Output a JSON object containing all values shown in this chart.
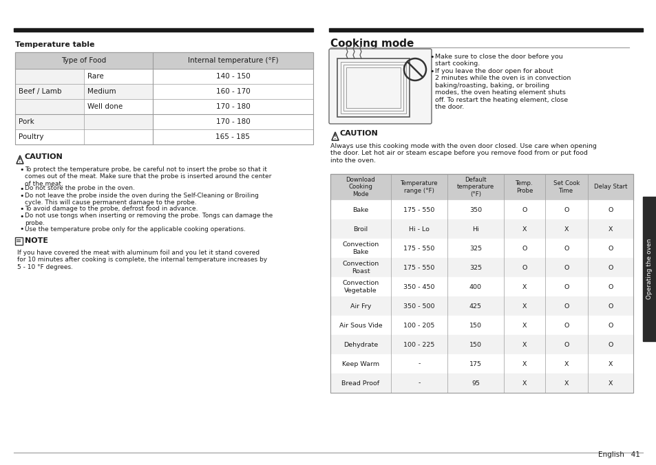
{
  "page_bg": "#ffffff",
  "top_bar_color": "#1a1a1a",
  "section_left_title": "Temperature table",
  "temp_table_header": [
    "Type of Food",
    "Internal temperature (°F)"
  ],
  "temp_table_rows": [
    [
      "Beef / Lamb",
      "Rare",
      "140 - 150"
    ],
    [
      "Beef / Lamb",
      "Medium",
      "160 - 170"
    ],
    [
      "Beef / Lamb",
      "Well done",
      "170 - 180"
    ],
    [
      "Pork",
      "",
      "170 - 180"
    ],
    [
      "Poultry",
      "",
      "165 - 185"
    ]
  ],
  "caution_left_title": "CAUTION",
  "caution_left_bullets": [
    "To protect the temperature probe, be careful not to insert the probe so that it\ncomes out of the meat. Make sure that the probe is inserted around the center\nof the meat.",
    "Do not store the probe in the oven.",
    "Do not leave the probe inside the oven during the Self-Cleaning or Broiling\ncycle. This will cause permanent damage to the probe.",
    "To avoid damage to the probe, defrost food in advance.",
    "Do not use tongs when inserting or removing the probe. Tongs can damage the\nprobe.",
    "Use the temperature probe only for the applicable cooking operations."
  ],
  "note_title": "NOTE",
  "note_text": "If you have covered the meat with aluminum foil and you let it stand covered\nfor 10 minutes after cooking is complete, the internal temperature increases by\n5 - 10 °F degrees.",
  "section_right_title": "Cooking mode",
  "cooking_mode_bullets": [
    "Make sure to close the door before you\nstart cooking.",
    "If you leave the door open for about\n2 minutes while the oven is in convection\nbaking/roasting, baking, or broiling\nmodes, the oven heating element shuts\noff. To restart the heating element, close\nthe door."
  ],
  "caution_right_title": "CAUTION",
  "caution_right_text": "Always use this cooking mode with the oven door closed. Use care when opening\nthe door. Let hot air or steam escape before you remove food from or put food\ninto the oven.",
  "cooking_table_headers": [
    "Download\nCooking\nMode",
    "Temperature\nrange (°F)",
    "Default\ntemperature\n(°F)",
    "Temp.\nProbe",
    "Set Cook\nTime",
    "Delay Start"
  ],
  "cooking_table_rows": [
    [
      "Bake",
      "175 - 550",
      "350",
      "O",
      "O",
      "O"
    ],
    [
      "Broil",
      "Hi - Lo",
      "Hi",
      "X",
      "X",
      "X"
    ],
    [
      "Convection\nBake",
      "175 - 550",
      "325",
      "O",
      "O",
      "O"
    ],
    [
      "Convection\nRoast",
      "175 - 550",
      "325",
      "O",
      "O",
      "O"
    ],
    [
      "Convection\nVegetable",
      "350 - 450",
      "400",
      "X",
      "O",
      "O"
    ],
    [
      "Air Fry",
      "350 - 500",
      "425",
      "X",
      "O",
      "O"
    ],
    [
      "Air Sous Vide",
      "100 - 205",
      "150",
      "X",
      "O",
      "O"
    ],
    [
      "Dehydrate",
      "100 - 225",
      "150",
      "X",
      "O",
      "O"
    ],
    [
      "Keep Warm",
      "-",
      "175",
      "X",
      "X",
      "X"
    ],
    [
      "Bread Proof",
      "-",
      "95",
      "X",
      "X",
      "X"
    ]
  ],
  "sidebar_text": "Operating the oven",
  "footer_text": "English   41",
  "header_color": "#cccccc",
  "row_alt_color": "#f2f2f2",
  "row_white": "#ffffff",
  "border_color": "#999999",
  "text_color": "#1a1a1a"
}
